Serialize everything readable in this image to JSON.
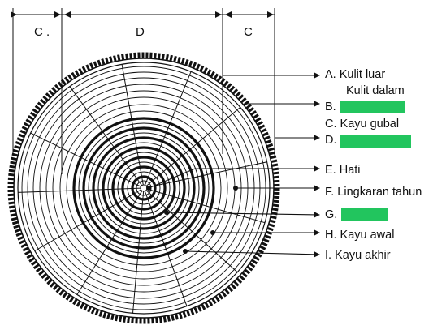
{
  "dimensions": {
    "left": "C .",
    "center": "D",
    "right": "C"
  },
  "labels": {
    "a": "A. Kulit luar",
    "kulit_dalam": "Kulit dalam",
    "b": "B.",
    "c": "C. Kayu gubal",
    "d": "D.",
    "e": "E. Hati",
    "f": "F. Lingkaran tahun",
    "g": "G.",
    "h": "H. Kayu awal",
    "i": "I.  Kayu akhir"
  },
  "colors": {
    "mask": "#22c55e",
    "ink": "#111111"
  }
}
